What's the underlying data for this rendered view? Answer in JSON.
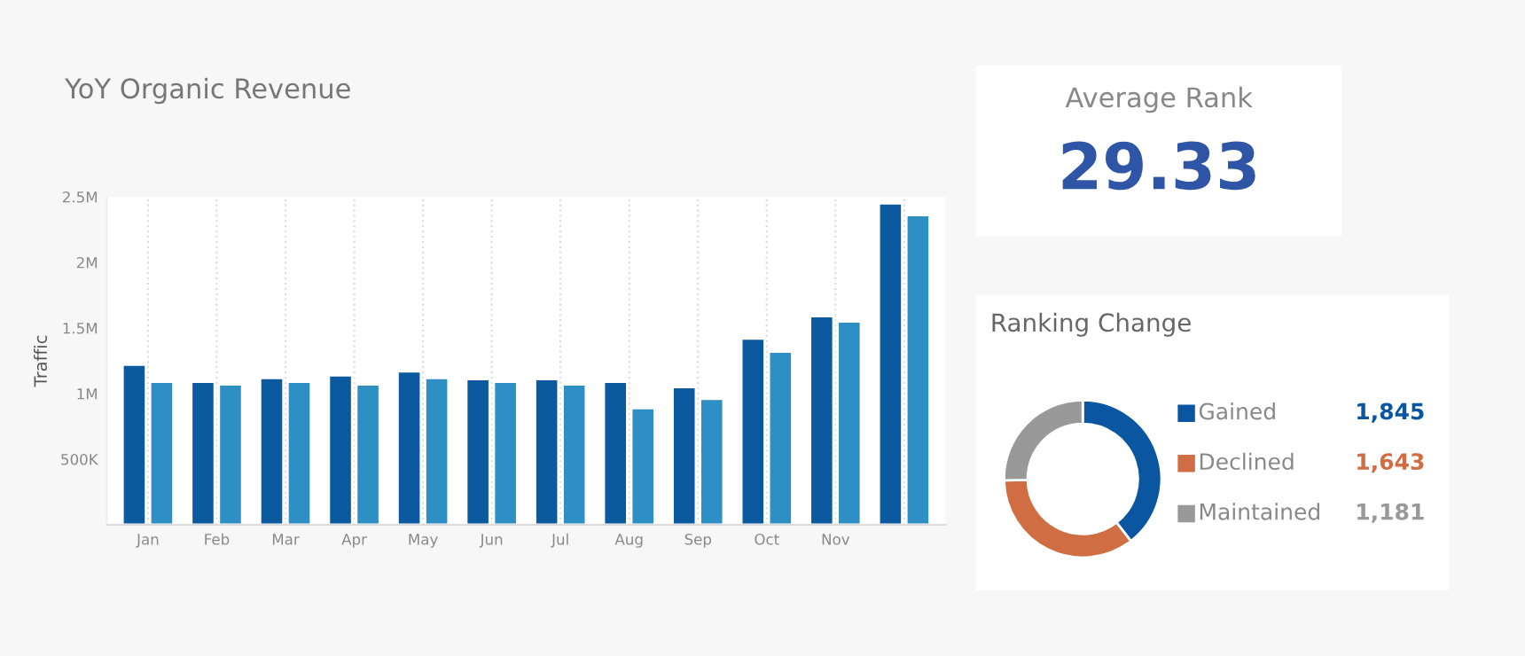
{
  "chart_data": [
    {
      "type": "bar",
      "title": "YoY Organic Revenue",
      "ylabel": "Traffic",
      "categories": [
        "Jan",
        "Feb",
        "Mar",
        "Apr",
        "May",
        "Jun",
        "Jul",
        "Aug",
        "Sep",
        "Oct",
        "Nov",
        null
      ],
      "series": [
        {
          "color": "#0b5aa0",
          "values": [
            1220000,
            1090000,
            1120000,
            1140000,
            1170000,
            1110000,
            1110000,
            1090000,
            1050000,
            1420000,
            1590000,
            2450000
          ]
        },
        {
          "color": "#2e8fc4",
          "values": [
            1090000,
            1070000,
            1090000,
            1070000,
            1120000,
            1090000,
            1070000,
            890000,
            960000,
            1320000,
            1550000,
            2360000
          ]
        }
      ],
      "ylim": [
        0,
        2500000
      ],
      "yticks": [
        {
          "value": 500000,
          "label": "500K"
        },
        {
          "value": 1000000,
          "label": "1M"
        },
        {
          "value": 1500000,
          "label": "1.5M"
        },
        {
          "value": 2000000,
          "label": "2M"
        },
        {
          "value": 2500000,
          "label": "2.5M"
        }
      ],
      "grid": "x"
    },
    {
      "type": "other",
      "title": "Average Rank",
      "annotations": [
        "29.33"
      ]
    },
    {
      "type": "donut",
      "title": "Ranking Change",
      "categories": [
        "Gained",
        "Declined",
        "Maintained"
      ],
      "values": [
        1845,
        1643,
        1181
      ],
      "colors": [
        "#0b56a0",
        "#d06d42",
        "#999999"
      ],
      "value_labels": [
        "1,845",
        "1,643",
        "1,181"
      ],
      "legend": "right"
    }
  ]
}
